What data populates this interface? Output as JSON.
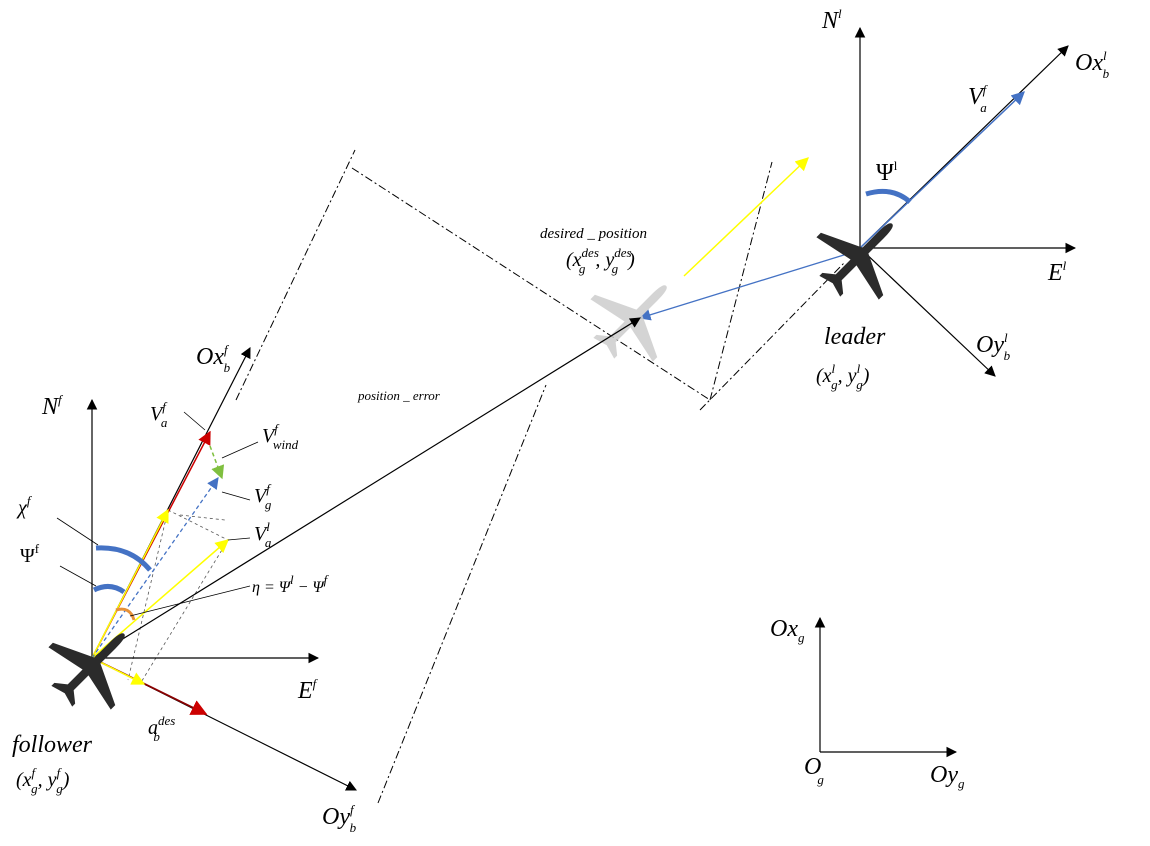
{
  "diagram": {
    "colors": {
      "black": "#000000",
      "blue": "#4472c4",
      "yellow": "#ffff00",
      "red": "#cc0000",
      "orange": "#e69138",
      "green": "#7fbf3f",
      "gray": "#555555",
      "plane_dark": "#2b2b2b",
      "plane_ghost": "#cccccc"
    },
    "follower": {
      "name": "follower",
      "coord": "(x",
      "coord_g": "g",
      "coord_f_sup": "f",
      "coord_y": ", y",
      "coord_y_g": "g",
      "coord_y_f": "f",
      "coord_close": ")",
      "north": "N",
      "north_sup": "f",
      "east": "E",
      "east_sup": "f",
      "ox": "Ox",
      "ox_sub": "b",
      "ox_sup": "f",
      "oy": "Oy",
      "oy_sub": "b",
      "oy_sup": "f",
      "va": "V",
      "va_sub": "a",
      "va_sup": "f",
      "vwind": "V",
      "vwind_sub": "wind",
      "vwind_sup": "f",
      "vg": "V",
      "vg_sub": "g",
      "vg_sup": "f",
      "val": "V",
      "val_sub": "a",
      "val_sup": "l",
      "chi": "χ",
      "chi_sup": "f",
      "psi": "Ψ",
      "psi_sup": "f",
      "eta": "η = Ψ",
      "eta_sup1": "l",
      "eta_mid": " − Ψ",
      "eta_sup2": "f",
      "ades": "a",
      "ades_sub": "b",
      "ades_sup": "des"
    },
    "leader": {
      "name": "leader",
      "coord": "(x",
      "coord_g": "g",
      "coord_l_sup": "l",
      "coord_y": ", y",
      "coord_y_g": "g",
      "coord_y_l": "l",
      "coord_close": ")",
      "north": "N",
      "north_sup": "l",
      "east": "E",
      "east_sup": "l",
      "ox": "Ox",
      "ox_sub": "b",
      "ox_sup": "l",
      "oy": "Oy",
      "oy_sub": "b",
      "oy_sup": "l",
      "va": "V",
      "va_sub": "a",
      "va_sup": "f",
      "psi": "Ψ",
      "psi_sup": "l"
    },
    "desired": {
      "name": "desired _ position",
      "coord": "(x",
      "coord_g": "g",
      "coord_des_sup": "des",
      "coord_y": ", y",
      "coord_y_g": "g",
      "coord_y_des": "des",
      "coord_close": ")"
    },
    "position_error": "position _ error",
    "ground": {
      "ox": "Ox",
      "ox_sub": "g",
      "oy": "Oy",
      "oy_sub": "g",
      "origin": "O",
      "origin_sub": "g"
    }
  }
}
